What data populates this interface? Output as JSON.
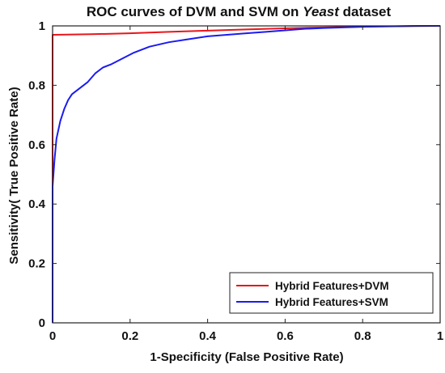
{
  "chart_data": {
    "type": "line",
    "title_parts": [
      "ROC curves of DVM and SVM on ",
      "Yeast",
      " dataset"
    ],
    "xlabel": "1-Specificity (False Positive Rate)",
    "ylabel": "Sensitivity( True Positive Rate)",
    "xlim": [
      0,
      1
    ],
    "ylim": [
      0,
      1
    ],
    "xticks": [
      0,
      0.2,
      0.4,
      0.6,
      0.8,
      1
    ],
    "yticks": [
      0,
      0.2,
      0.4,
      0.6,
      0.8,
      1
    ],
    "xtick_labels": [
      "0",
      "0.2",
      "0.4",
      "0.6",
      "0.8",
      "1"
    ],
    "ytick_labels": [
      "0",
      "0.2",
      "0.4",
      "0.6",
      "0.8",
      "1"
    ],
    "grid": false,
    "legend_position": "bottom-right",
    "series": [
      {
        "name": "Hybrid Features+DVM",
        "color": "#e8161b",
        "x": [
          0,
          0,
          0,
          0.005,
          0.1,
          0.2,
          0.3,
          0.4,
          0.5,
          0.6,
          0.7,
          0.8,
          0.9,
          1.0
        ],
        "y": [
          0,
          0.5,
          0.97,
          0.97,
          0.972,
          0.975,
          0.98,
          0.984,
          0.988,
          0.992,
          0.995,
          0.998,
          0.999,
          1.0
        ]
      },
      {
        "name": "Hybrid Features+SVM",
        "color": "#1b1bf0",
        "x": [
          0,
          0,
          0.005,
          0.01,
          0.02,
          0.03,
          0.04,
          0.05,
          0.07,
          0.09,
          0.11,
          0.13,
          0.15,
          0.18,
          0.21,
          0.25,
          0.3,
          0.35,
          0.4,
          0.45,
          0.5,
          0.55,
          0.6,
          0.65,
          0.7,
          0.75,
          0.8,
          0.85,
          0.9,
          0.95,
          1.0
        ],
        "y": [
          0,
          0.46,
          0.55,
          0.62,
          0.68,
          0.72,
          0.75,
          0.77,
          0.79,
          0.81,
          0.84,
          0.86,
          0.87,
          0.89,
          0.91,
          0.93,
          0.945,
          0.955,
          0.965,
          0.97,
          0.975,
          0.98,
          0.985,
          0.99,
          0.993,
          0.995,
          0.997,
          0.998,
          0.999,
          1.0,
          1.0
        ]
      }
    ]
  }
}
